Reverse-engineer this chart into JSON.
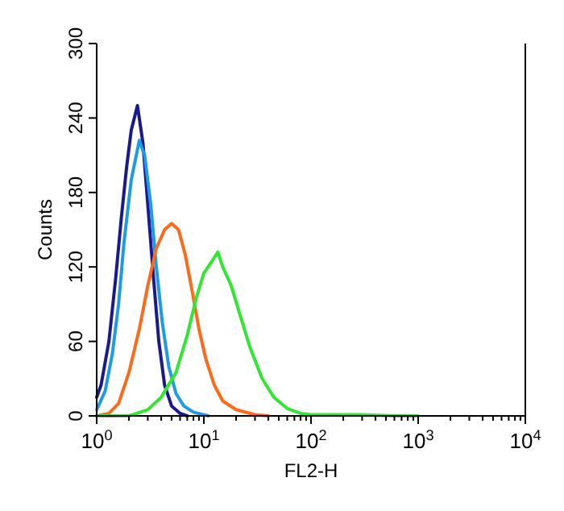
{
  "chart_data": {
    "type": "line",
    "xlabel": "FL2-H",
    "ylabel": "Counts",
    "log": "x",
    "xlim": [
      1,
      10000
    ],
    "ylim": [
      0,
      300
    ],
    "xticks": [
      {
        "value": 1,
        "label": "10$^{0}$"
      },
      {
        "value": 2,
        "label": null
      },
      {
        "value": 3,
        "label": null
      },
      {
        "value": 4,
        "label": null
      },
      {
        "value": 5,
        "label": null
      },
      {
        "value": 6,
        "label": null
      },
      {
        "value": 7,
        "label": null
      },
      {
        "value": 8,
        "label": null
      },
      {
        "value": 9,
        "label": null
      },
      {
        "value": 10,
        "label": "10$^{1}$"
      },
      {
        "value": 20,
        "label": null
      },
      {
        "value": 30,
        "label": null
      },
      {
        "value": 40,
        "label": null
      },
      {
        "value": 50,
        "label": null
      },
      {
        "value": 60,
        "label": null
      },
      {
        "value": 70,
        "label": null
      },
      {
        "value": 80,
        "label": null
      },
      {
        "value": 90,
        "label": null
      },
      {
        "value": 100,
        "label": "10$^{2}$"
      },
      {
        "value": 200,
        "label": null
      },
      {
        "value": 300,
        "label": null
      },
      {
        "value": 400,
        "label": null
      },
      {
        "value": 500,
        "label": null
      },
      {
        "value": 600,
        "label": null
      },
      {
        "value": 700,
        "label": null
      },
      {
        "value": 800,
        "label": null
      },
      {
        "value": 900,
        "label": null
      },
      {
        "value": 1000,
        "label": "10$^{3}$"
      },
      {
        "value": 2000,
        "label": null
      },
      {
        "value": 3000,
        "label": null
      },
      {
        "value": 4000,
        "label": null
      },
      {
        "value": 5000,
        "label": null
      },
      {
        "value": 6000,
        "label": null
      },
      {
        "value": 7000,
        "label": null
      },
      {
        "value": 8000,
        "label": null
      },
      {
        "value": 9000,
        "label": null
      },
      {
        "value": 10000,
        "label": "10$^{4}$"
      }
    ],
    "yticks": [
      0,
      60,
      120,
      180,
      240,
      300
    ],
    "marker": "none",
    "line_style": "solid",
    "grid": false,
    "series": [
      {
        "color": "#1a1a8c",
        "x": [
          1,
          1.1,
          1.3,
          1.5,
          1.7,
          1.9,
          2.1,
          2.4,
          2.7,
          3,
          3.4,
          3.8,
          4.3,
          5,
          6,
          7
        ],
        "values": [
          15,
          25,
          60,
          110,
          160,
          200,
          230,
          250,
          220,
          170,
          110,
          60,
          25,
          8,
          2,
          0
        ]
      },
      {
        "color": "#1e9be6",
        "x": [
          1,
          1.2,
          1.4,
          1.6,
          1.8,
          2.1,
          2.5,
          2.8,
          3.2,
          3.6,
          4.1,
          4.7,
          5.5,
          6.5,
          8,
          11
        ],
        "values": [
          5,
          20,
          50,
          90,
          140,
          190,
          222,
          210,
          170,
          120,
          75,
          40,
          18,
          8,
          3,
          0
        ]
      },
      {
        "color": "#ff6a1a",
        "x": [
          1,
          1.3,
          1.6,
          2,
          2.5,
          3,
          3.6,
          4.3,
          5,
          5.8,
          6.7,
          7.8,
          9,
          10.5,
          12.5,
          15,
          20,
          30,
          40
        ],
        "values": [
          0,
          2,
          10,
          35,
          70,
          105,
          135,
          150,
          155,
          150,
          130,
          100,
          70,
          45,
          25,
          12,
          5,
          1,
          0
        ]
      },
      {
        "color": "#33e633",
        "x": [
          1,
          2,
          3,
          4,
          5.5,
          7,
          8.5,
          10,
          12,
          13.5,
          15,
          18,
          22,
          27,
          35,
          45,
          60,
          80,
          100,
          300,
          600,
          1000
        ],
        "values": [
          0,
          0,
          5,
          15,
          35,
          65,
          95,
          115,
          125,
          132,
          120,
          105,
          80,
          55,
          30,
          15,
          6,
          2,
          1,
          1,
          0,
          0
        ]
      }
    ]
  }
}
